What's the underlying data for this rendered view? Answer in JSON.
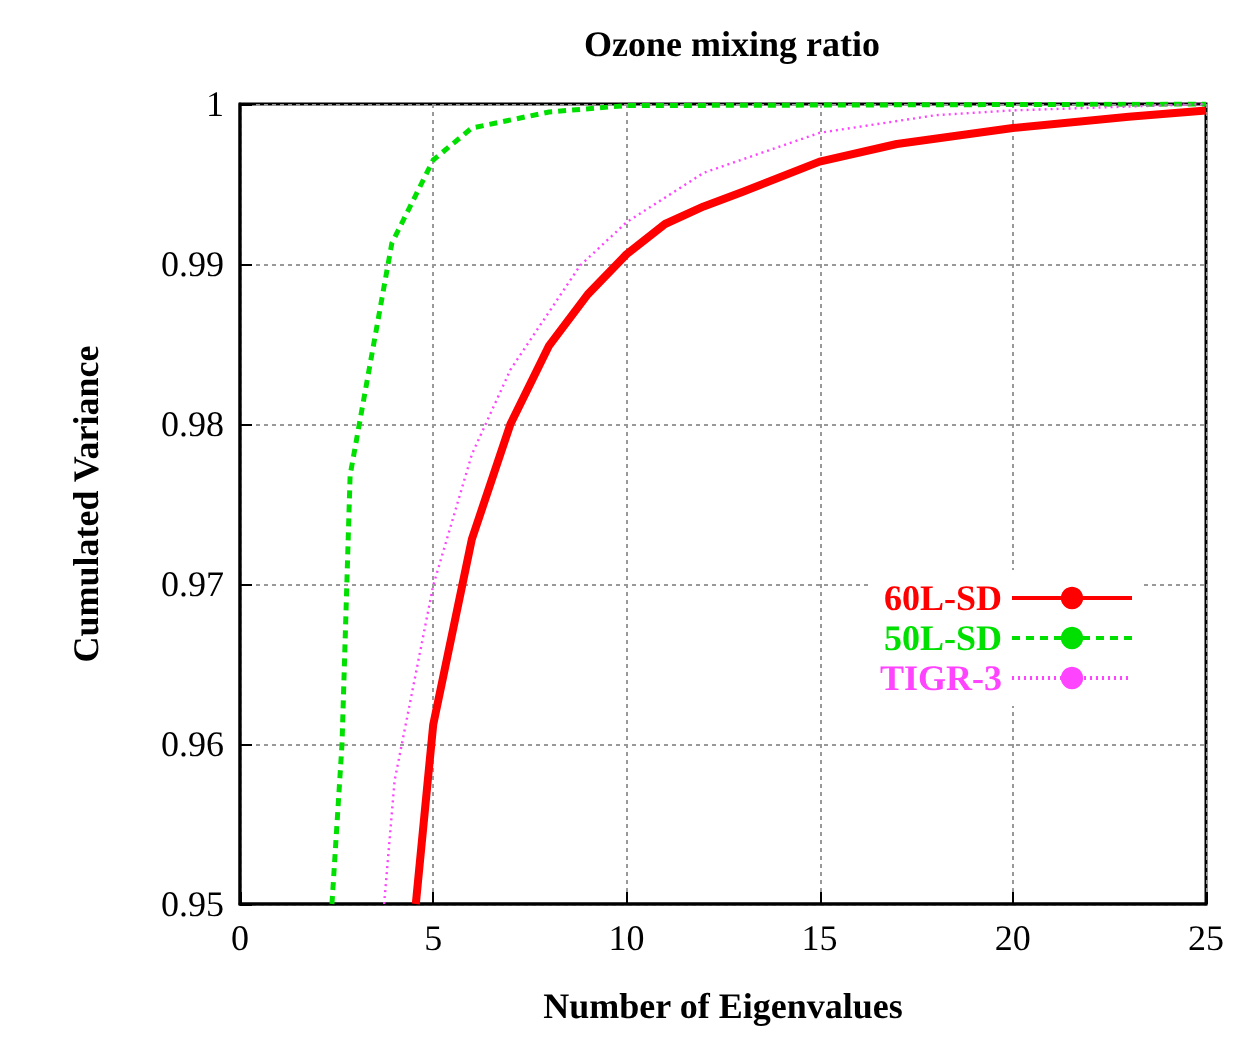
{
  "chart_data": {
    "type": "line",
    "title": "Ozone mixing ratio",
    "xlabel": "Number of Eigenvalues",
    "ylabel": "Cumulated Variance",
    "xlim": [
      0,
      25
    ],
    "xticks": [
      0,
      5,
      10,
      15,
      20,
      25
    ],
    "ylim": [
      0.95,
      1
    ],
    "yticks": [
      0.95,
      0.96,
      0.97,
      0.98,
      0.99,
      1
    ],
    "grid": true,
    "legend": "right",
    "marker": "none",
    "series": [
      {
        "name": "60L-SD",
        "color": "#ff0000",
        "line_style": "solid",
        "x": [
          4.55,
          5,
          6,
          7,
          8,
          9,
          10,
          11,
          12,
          13,
          15,
          17,
          20,
          23,
          25
        ],
        "values": [
          0.95,
          0.9612,
          0.9728,
          0.98,
          0.9849,
          0.9881,
          0.9906,
          0.9925,
          0.9936,
          0.9945,
          0.9964,
          0.9975,
          0.9985,
          0.9992,
          0.9996
        ]
      },
      {
        "name": "50L-SD",
        "color": "#00e000",
        "line_style": "dashed",
        "x": [
          2.38,
          2.64,
          2.85,
          3.93,
          5,
          6,
          8,
          10,
          25
        ],
        "values": [
          0.95,
          0.96,
          0.9768,
          0.9913,
          0.9965,
          0.9985,
          0.9995,
          0.9999,
          1
        ]
      },
      {
        "name": "TIGR-3",
        "color": "#ff44ff",
        "line_style": "dotted",
        "x": [
          3.73,
          4,
          5,
          6,
          7,
          8.8,
          10,
          12,
          15,
          18,
          20,
          25
        ],
        "values": [
          0.95,
          0.9577,
          0.9699,
          0.9781,
          0.9834,
          0.9899,
          0.9926,
          0.9957,
          0.9982,
          0.9993,
          0.9996,
          1
        ]
      }
    ]
  }
}
